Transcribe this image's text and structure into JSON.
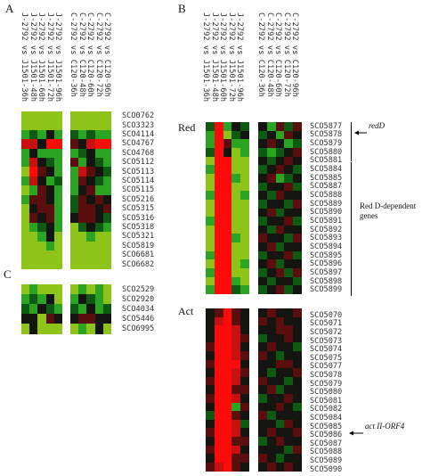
{
  "panels": {
    "A": {
      "letter": "A",
      "conditions_J": [
        "J-2792 vs J1501-36h",
        "J-2792 vs J1501-48h",
        "J-2792 vs J1501-60h",
        "J-2792 vs J1501-72h",
        "J-2792 vs J1501-96h"
      ],
      "conditions_C": [
        "C-2792 vs C120-36h",
        "C-2792 vs C120-48h",
        "C-2792 vs C120-60h",
        "C-2792 vs C120-72h",
        "C-2792 vs C120-96h"
      ],
      "genes": [
        "SCO0762",
        "SCO3323",
        "SCO4114",
        "SCO4767",
        "SCO4768",
        "SCO5112",
        "SCO5113",
        "SCO5114",
        "SCO5115",
        "SCO5216",
        "SCO5315",
        "SCO5316",
        "SCO5318",
        "SCO5321",
        "SCO5819",
        "SCO6681",
        "SCO6682"
      ],
      "heatmap_J": [
        [
          "yg",
          "yg",
          "yg",
          "yg",
          "yg"
        ],
        [
          "yg",
          "yg",
          "yg",
          "yg",
          "yg"
        ],
        [
          "g",
          "dg",
          "g",
          "k",
          "g"
        ],
        [
          "r",
          "r",
          "k",
          "R",
          "R"
        ],
        [
          "g",
          "k",
          "g",
          "g",
          "g"
        ],
        [
          "g",
          "r",
          "k",
          "dg",
          "g"
        ],
        [
          "yg",
          "R",
          "dr",
          "k",
          "g"
        ],
        [
          "g",
          "r",
          "k",
          "g",
          "dg"
        ],
        [
          "yg",
          "g",
          "dr",
          "k",
          "g"
        ],
        [
          "g",
          "dr",
          "dr",
          "k",
          "g"
        ],
        [
          "yg",
          "k",
          "dr",
          "dr",
          "g"
        ],
        [
          "yg",
          "dr",
          "k",
          "dr",
          "g"
        ],
        [
          "yg",
          "g",
          "dg",
          "k",
          "g"
        ],
        [
          "yg",
          "yg",
          "g",
          "k",
          "yg"
        ],
        [
          "yg",
          "yg",
          "yg",
          "g",
          "yg"
        ],
        [
          "yg",
          "yg",
          "yg",
          "yg",
          "yg"
        ],
        [
          "yg",
          "yg",
          "yg",
          "yg",
          "yg"
        ]
      ],
      "heatmap_C": [
        [
          "yg",
          "yg",
          "yg",
          "yg",
          "yg"
        ],
        [
          "yg",
          "yg",
          "yg",
          "yg",
          "yg"
        ],
        [
          "dg",
          "g",
          "dg",
          "g",
          "g"
        ],
        [
          "dr",
          "k",
          "r",
          "R",
          "R"
        ],
        [
          "g",
          "dg",
          "k",
          "g",
          "g"
        ],
        [
          "dr",
          "g",
          "k",
          "dg",
          "g"
        ],
        [
          "g",
          "r",
          "dr",
          "k",
          "dg"
        ],
        [
          "g",
          "dr",
          "k",
          "dg",
          "g"
        ],
        [
          "g",
          "k",
          "dr",
          "g",
          "g"
        ],
        [
          "dg",
          "dr",
          "k",
          "dr",
          "k"
        ],
        [
          "dg",
          "dr",
          "dr",
          "k",
          "dr"
        ],
        [
          "k",
          "dr",
          "dr",
          "k",
          "dg"
        ],
        [
          "yg",
          "dg",
          "k",
          "dg",
          "g"
        ],
        [
          "yg",
          "yg",
          "g",
          "yg",
          "yg"
        ],
        [
          "yg",
          "yg",
          "yg",
          "yg",
          "yg"
        ],
        [
          "yg",
          "yg",
          "yg",
          "yg",
          "yg"
        ],
        [
          "yg",
          "yg",
          "yg",
          "yg",
          "yg"
        ]
      ]
    },
    "C": {
      "letter": "C",
      "genes": [
        "SCO2529",
        "SCO2920",
        "SCO4034",
        "SCO5446",
        "SCO6995"
      ],
      "heatmap_J": [
        [
          "yg",
          "g",
          "yg",
          "yg",
          "yg"
        ],
        [
          "g",
          "dg",
          "g",
          "k",
          "yg"
        ],
        [
          "dg",
          "g",
          "k",
          "dg",
          "g"
        ],
        [
          "k",
          "k",
          "yg",
          "dr",
          "k"
        ],
        [
          "yg",
          "k",
          "yg",
          "yg",
          "yg"
        ]
      ],
      "heatmap_C": [
        [
          "yg",
          "g",
          "yg",
          "g",
          "yg"
        ],
        [
          "g",
          "k",
          "dg",
          "g",
          "yg"
        ],
        [
          "dg",
          "g",
          "k",
          "g",
          "dg"
        ],
        [
          "k",
          "dr",
          "dr",
          "k",
          "k"
        ],
        [
          "yg",
          "g",
          "yg",
          "k",
          "yg"
        ]
      ]
    },
    "B": {
      "letter": "B",
      "conditions_J": [
        "J-2792 vs J1501-36h",
        "J-2792 vs J1501-48h",
        "J-2792 vs J1501-60h",
        "J-2792 vs J1501-72h",
        "J-2792 vs J1501-96h"
      ],
      "conditions_C": [
        "C-2792 vs C120-36h",
        "C-2792 vs C120-48h",
        "C-2792 vs C120-60h",
        "C-2792 vs C120-72h",
        "C-2792 vs C120-96h"
      ],
      "red": {
        "label": "Red",
        "genes": [
          "SCO5877",
          "SCO5878",
          "SCO5879",
          "SCO5880",
          "SCO5881",
          "SCO5884",
          "SCO5885",
          "SCO5887",
          "SCO5888",
          "SCO5889",
          "SCO5890",
          "SCO5891",
          "SCO5892",
          "SCO5893",
          "SCO5894",
          "SCO5895",
          "SCO5896",
          "SCO5897",
          "SCO5898",
          "SCO5899"
        ],
        "annotation_redD": "redD",
        "annotation_group": "Red D-dependent genes",
        "heatmap_J": [
          [
            "dg",
            "R",
            "g",
            "k",
            "dg"
          ],
          [
            "g",
            "R",
            "yg",
            "dg",
            "k"
          ],
          [
            "g",
            "R",
            "dr",
            "g",
            "g"
          ],
          [
            "dg",
            "R",
            "k",
            "yg",
            "g"
          ],
          [
            "yg",
            "R",
            "R",
            "yg",
            "yg"
          ],
          [
            "g",
            "R",
            "R",
            "yg",
            "yg"
          ],
          [
            "yg",
            "R",
            "R",
            "g",
            "yg"
          ],
          [
            "yg",
            "R",
            "R",
            "yg",
            "yg"
          ],
          [
            "g",
            "R",
            "R",
            "yg",
            "g"
          ],
          [
            "yg",
            "R",
            "R",
            "yg",
            "yg"
          ],
          [
            "yg",
            "R",
            "R",
            "yg",
            "yg"
          ],
          [
            "g",
            "R",
            "R",
            "yg",
            "yg"
          ],
          [
            "yg",
            "R",
            "R",
            "yg",
            "yg"
          ],
          [
            "yg",
            "R",
            "R",
            "g",
            "yg"
          ],
          [
            "yg",
            "R",
            "R",
            "yg",
            "yg"
          ],
          [
            "g",
            "R",
            "R",
            "yg",
            "yg"
          ],
          [
            "yg",
            "R",
            "R",
            "yg",
            "g"
          ],
          [
            "g",
            "R",
            "R",
            "yg",
            "yg"
          ],
          [
            "yg",
            "R",
            "R",
            "g",
            "yg"
          ],
          [
            "g",
            "R",
            "R",
            "dg",
            "g"
          ]
        ],
        "heatmap_C": [
          [
            "k",
            "g",
            "dr",
            "dg",
            "dr"
          ],
          [
            "dg",
            "k",
            "g",
            "dr",
            "k"
          ],
          [
            "k",
            "dr",
            "k",
            "g",
            "dg"
          ],
          [
            "dg",
            "g",
            "dg",
            "k",
            "dr"
          ],
          [
            "k",
            "dg",
            "k",
            "dr",
            "k"
          ],
          [
            "dg",
            "k",
            "dr",
            "k",
            "dg"
          ],
          [
            "k",
            "dr",
            "g",
            "dg",
            "k"
          ],
          [
            "dg",
            "k",
            "k",
            "dr",
            "dg"
          ],
          [
            "k",
            "dg",
            "dr",
            "k",
            "k"
          ],
          [
            "dg",
            "k",
            "k",
            "dg",
            "dr"
          ],
          [
            "k",
            "dr",
            "dg",
            "k",
            "k"
          ],
          [
            "dg",
            "k",
            "k",
            "dr",
            "dg"
          ],
          [
            "k",
            "dg",
            "dr",
            "k",
            "k"
          ],
          [
            "dr",
            "k",
            "k",
            "dg",
            "dr"
          ],
          [
            "k",
            "dr",
            "dg",
            "k",
            "k"
          ],
          [
            "dg",
            "k",
            "k",
            "dr",
            "dg"
          ],
          [
            "k",
            "dr",
            "dg",
            "k",
            "k"
          ],
          [
            "dg",
            "k",
            "dr",
            "dg",
            "dr"
          ],
          [
            "k",
            "dg",
            "k",
            "k",
            "dg"
          ],
          [
            "dg",
            "k",
            "dr",
            "dg",
            "k"
          ]
        ]
      },
      "act": {
        "label": "Act",
        "genes": [
          "SCO5070",
          "SCO5071",
          "SCO5072",
          "SCO5073",
          "SCO5074",
          "SCO5075",
          "SCO5077",
          "SCO5078",
          "SCO5079",
          "SCO5080",
          "SCO5081",
          "SCO5082",
          "SCO5084",
          "SCO5085",
          "SCO5086",
          "SCO5087",
          "SCO5088",
          "SCO5089",
          "SCO5090"
        ],
        "annotation_actII": "act II-ORF4",
        "heatmap_J": [
          [
            "k",
            "dr",
            "R",
            "dr",
            "k"
          ],
          [
            "k",
            "r",
            "R",
            "dr",
            "k"
          ],
          [
            "k",
            "R",
            "R",
            "r",
            "k"
          ],
          [
            "k",
            "R",
            "R",
            "r",
            "dr"
          ],
          [
            "dr",
            "R",
            "R",
            "r",
            "k"
          ],
          [
            "k",
            "R",
            "R",
            "r",
            "dr"
          ],
          [
            "dr",
            "R",
            "R",
            "R",
            "k"
          ],
          [
            "k",
            "R",
            "R",
            "r",
            "dr"
          ],
          [
            "dr",
            "R",
            "R",
            "r",
            "k"
          ],
          [
            "k",
            "R",
            "R",
            "dr",
            "dr"
          ],
          [
            "dr",
            "R",
            "R",
            "r",
            "k"
          ],
          [
            "k",
            "R",
            "R",
            "g",
            "dr"
          ],
          [
            "dg",
            "R",
            "R",
            "dr",
            "k"
          ],
          [
            "k",
            "R",
            "R",
            "r",
            "dg"
          ],
          [
            "dr",
            "R",
            "R",
            "r",
            "k"
          ],
          [
            "k",
            "R",
            "R",
            "dr",
            "dr"
          ],
          [
            "dr",
            "R",
            "R",
            "r",
            "k"
          ],
          [
            "k",
            "R",
            "R",
            "dr",
            "dr"
          ],
          [
            "dr",
            "r",
            "R",
            "dr",
            "k"
          ]
        ],
        "heatmap_C": [
          [
            "k",
            "dr",
            "k",
            "k",
            "dr"
          ],
          [
            "dr",
            "k",
            "dr",
            "k",
            "k"
          ],
          [
            "k",
            "k",
            "dr",
            "dr",
            "k"
          ],
          [
            "dg",
            "k",
            "k",
            "dr",
            "k"
          ],
          [
            "k",
            "dr",
            "k",
            "k",
            "dg"
          ],
          [
            "dr",
            "k",
            "dg",
            "k",
            "k"
          ],
          [
            "k",
            "k",
            "dr",
            "dr",
            "k"
          ],
          [
            "k",
            "dg",
            "k",
            "k",
            "dr"
          ],
          [
            "dr",
            "k",
            "k",
            "dg",
            "k"
          ],
          [
            "k",
            "dr",
            "dg",
            "k",
            "k"
          ],
          [
            "dg",
            "k",
            "k",
            "dr",
            "k"
          ],
          [
            "k",
            "k",
            "dr",
            "k",
            "dg"
          ],
          [
            "dr",
            "dg",
            "k",
            "k",
            "k"
          ],
          [
            "k",
            "k",
            "dg",
            "dr",
            "k"
          ],
          [
            "k",
            "dr",
            "k",
            "k",
            "dr"
          ],
          [
            "dg",
            "k",
            "dr",
            "k",
            "k"
          ],
          [
            "k",
            "k",
            "k",
            "dg",
            "dr"
          ],
          [
            "dr",
            "k",
            "dg",
            "k",
            "k"
          ],
          [
            "k",
            "dr",
            "k",
            "dr",
            "k"
          ]
        ]
      }
    }
  },
  "color_scale": {
    "R": "#ff0a0a",
    "r": "#c81010",
    "dr": "#5a0e0e",
    "k": "#141410",
    "dg": "#0f5a12",
    "g": "#2aa422",
    "yg": "#8ec41a"
  }
}
